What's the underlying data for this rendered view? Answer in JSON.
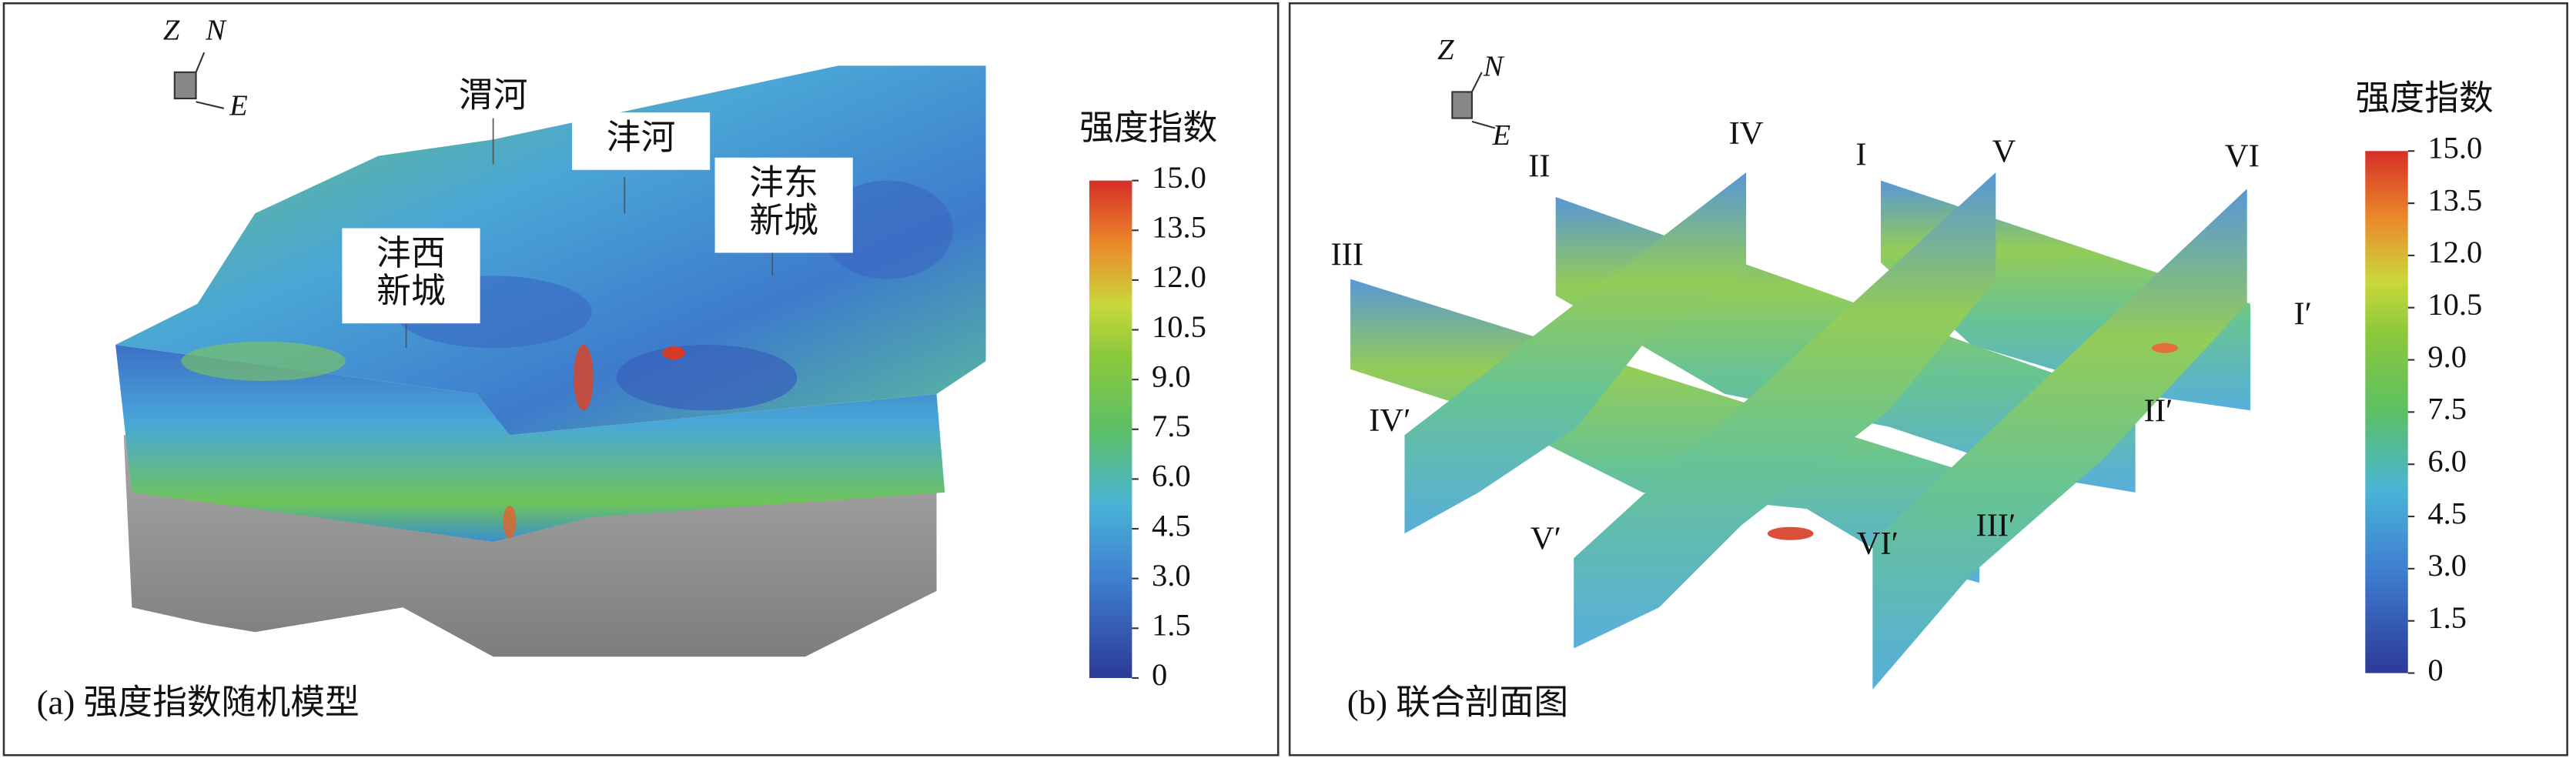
{
  "panels": [
    {
      "caption": "(a) 强度指数随机模型",
      "axes": {
        "z": "Z",
        "n": "N",
        "e": "E"
      },
      "labels": [
        {
          "lines": [
            "渭河"
          ]
        },
        {
          "lines": [
            "沣河"
          ]
        },
        {
          "lines": [
            "沣西",
            "新城"
          ]
        },
        {
          "lines": [
            "沣东",
            "新城"
          ]
        }
      ],
      "colorbar": {
        "title": "强度指数",
        "lim": [
          0,
          15
        ],
        "ticks": [
          {
            "value": 15,
            "label": "15.0"
          },
          {
            "value": 13.5,
            "label": "13.5"
          },
          {
            "value": 12,
            "label": "12.0"
          },
          {
            "value": 10.5,
            "label": "10.5"
          },
          {
            "value": 9,
            "label": "9.0"
          },
          {
            "value": 7.5,
            "label": "7.5"
          },
          {
            "value": 6,
            "label": "6.0"
          },
          {
            "value": 4.5,
            "label": "4.5"
          },
          {
            "value": 3,
            "label": "3.0"
          },
          {
            "value": 1.5,
            "label": "1.5"
          },
          0
        ]
      }
    },
    {
      "caption": "(b) 联合剖面图",
      "axes": {
        "z": "Z",
        "n": "N",
        "e": "E"
      },
      "labels": [
        "III",
        "II",
        "IV",
        "I",
        "V",
        "VI",
        "I′",
        "II′",
        "IV′",
        "V′",
        "VI′",
        "III′"
      ],
      "colorbar": {
        "title": "强度指数",
        "lim": [
          0,
          15
        ],
        "ticks": [
          {
            "value": 15,
            "label": "15.0"
          },
          {
            "value": 13.5,
            "label": "13.5"
          },
          {
            "value": 12,
            "label": "12.0"
          },
          {
            "value": 10.5,
            "label": "10.5"
          },
          {
            "value": 9,
            "label": "9.0"
          },
          {
            "value": 7.5,
            "label": "7.5"
          },
          {
            "value": 6,
            "label": "6.0"
          },
          {
            "value": 4.5,
            "label": "4.5"
          },
          {
            "value": 3,
            "label": "3.0"
          },
          {
            "value": 1.5,
            "label": "1.5"
          },
          0
        ]
      }
    }
  ]
}
